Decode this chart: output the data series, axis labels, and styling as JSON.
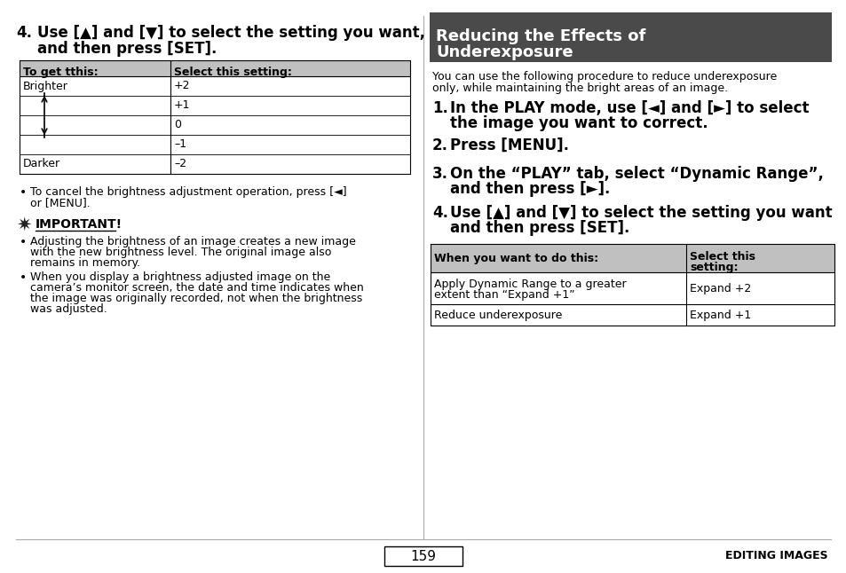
{
  "bg_color": "#ffffff",
  "page_number": "159",
  "footer_text": "EDITING IMAGES",
  "left_panel": {
    "table1_header": [
      "To get tthis:",
      "Select this setting:"
    ],
    "table1_header_bg": "#c0c0c0",
    "table1_rows_left": [
      "Brighter",
      "",
      "",
      "",
      "Darker"
    ],
    "table1_rows_right": [
      "+2",
      "+1",
      "0",
      "–1",
      "–2"
    ],
    "bullet1_line1": "To cancel the brightness adjustment operation, press [◄]",
    "bullet1_line2": "or [MENU].",
    "important_heading": "IMPORTANT!",
    "important_bullet1_line1": "Adjusting the brightness of an image creates a new image",
    "important_bullet1_line2": "with the new brightness level. The original image also",
    "important_bullet1_line3": "remains in memory.",
    "important_bullet2_line1": "When you display a brightness adjusted image on the",
    "important_bullet2_line2": "camera’s monitor screen, the date and time indicates when",
    "important_bullet2_line3": "the image was originally recorded, not when the brightness",
    "important_bullet2_line4": "was adjusted."
  },
  "right_panel": {
    "section_title_line1": "Reducing the Effects of",
    "section_title_line2": "Underexposure",
    "section_title_bg": "#4a4a4a",
    "section_title_color": "#ffffff",
    "intro_line1": "You can use the following procedure to reduce underexposure",
    "intro_line2": "only, while maintaining the bright areas of an image.",
    "step1_line1": "In the PLAY mode, use [◄] and [►] to select",
    "step1_line2": "the image you want to correct.",
    "step2": "Press [MENU].",
    "step3_line1": "On the “PLAY” tab, select “Dynamic Range”,",
    "step3_line2": "and then press [►].",
    "step4_line1": "Use [▲] and [▼] to select the setting you want",
    "step4_line2": "and then press [SET].",
    "table2_header_col1": "When you want to do this:",
    "table2_header_col2_line1": "Select this",
    "table2_header_col2_line2": "setting:",
    "table2_header_bg": "#c0c0c0",
    "table2_row1_col1_line1": "Apply Dynamic Range to a greater",
    "table2_row1_col1_line2": "extent than “Expand +1”",
    "table2_row1_col2": "Expand +2",
    "table2_row2_col1": "Reduce underexposure",
    "table2_row2_col2": "Expand +1"
  }
}
